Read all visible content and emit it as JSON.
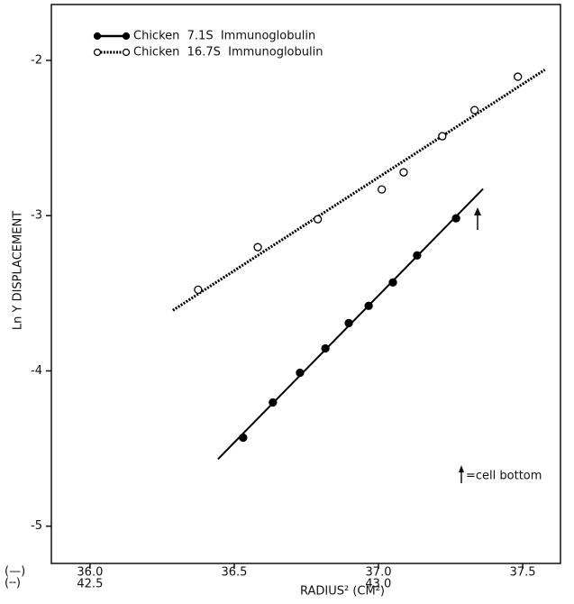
{
  "chart_data": {
    "type": "scatter",
    "xlabel": "RADIUS² (CM²)",
    "ylabel": "Ln Y DISPLACEMENT",
    "annotation": "=cell bottom",
    "x_axis_keys": [
      "(—)",
      "(╌)"
    ],
    "xlim": [
      35.866,
      37.631
    ],
    "xticks": [
      {
        "value": 36,
        "label": "36.0"
      },
      36.5,
      {
        "value": 37,
        "label": "37.0"
      },
      37.5
    ],
    "x2lim": [
      42.433,
      43.316
    ],
    "x2ticks": [
      42.5,
      {
        "value": 43,
        "label": "43.0"
      }
    ],
    "ylim": [
      -5.24,
      -1.64
    ],
    "yticks": [
      -2,
      -3,
      -4,
      -5
    ],
    "series": [
      {
        "name": "Chicken  7.1S  Immunoglobulin",
        "color": "#000000",
        "marker": "filled",
        "line": "solid",
        "x": [
          36.531,
          36.634,
          36.728,
          36.816,
          36.897,
          36.966,
          37.05,
          37.134,
          37.269
        ],
        "values": [
          -4.43,
          -4.203,
          -4.012,
          -3.855,
          -3.692,
          -3.581,
          -3.43,
          -3.256,
          -3.017
        ]
      },
      {
        "name": "Chicken  16.7S  Immunoglobulin",
        "color": "#000000",
        "marker": "open",
        "line": "dashed",
        "axis": "x2",
        "x": [
          42.6875,
          42.791,
          42.895,
          43.006,
          43.044,
          43.111,
          43.167,
          43.242
        ],
        "values": [
          -3.477,
          -3.203,
          -3.023,
          -2.831,
          -2.721,
          -2.488,
          -2.32,
          -2.105
        ]
      }
    ]
  }
}
